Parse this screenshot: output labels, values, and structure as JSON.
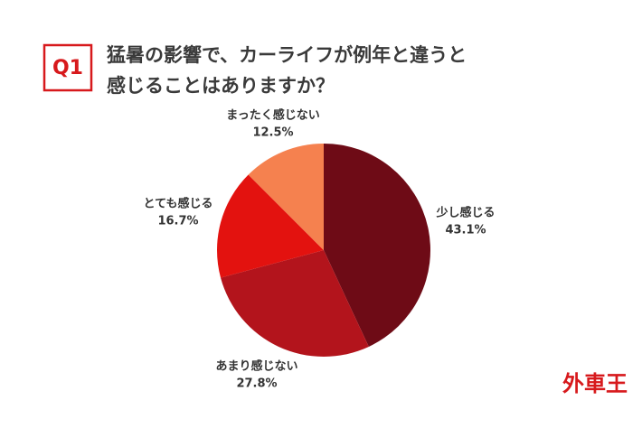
{
  "badge": "Q1",
  "logo": "外車王",
  "chart_data": {
    "type": "pie",
    "title_lines": [
      "猛暑の影響で、カーライフが例年と違うと",
      "感じることはありますか？"
    ],
    "categories": [
      "少し感じる",
      "あまり感じない",
      "とても感じる",
      "まったく感じない"
    ],
    "values": [
      43.1,
      27.8,
      16.7,
      12.5
    ],
    "value_labels": [
      "43.1%",
      "27.8%",
      "16.7%",
      "12.5%"
    ],
    "colors": [
      "#6e0b16",
      "#b3141c",
      "#e3120f",
      "#f5814f"
    ]
  }
}
